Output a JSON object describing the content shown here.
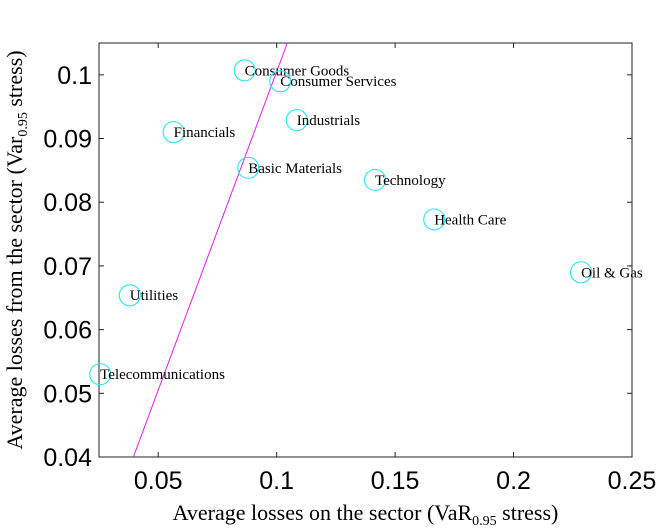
{
  "chart_data": {
    "type": "scatter",
    "title": "",
    "xlabel": {
      "prefix": "Average losses on the sector (",
      "var": "VaR",
      "subscript": "0.95",
      "suffix": " stress)"
    },
    "ylabel": {
      "prefix": "Average losses from the sector (",
      "var": "Var",
      "subscript": "0.95",
      "suffix": " stress)"
    },
    "xlim": [
      0.025,
      0.25
    ],
    "ylim": [
      0.04,
      0.105
    ],
    "xticks": [
      0.05,
      0.1,
      0.15,
      0.2,
      0.25
    ],
    "xtick_labels": [
      "0.05",
      "0.1",
      "0.15",
      "0.2",
      "0.25"
    ],
    "yticks": [
      0.04,
      0.05,
      0.06,
      0.07,
      0.08,
      0.09,
      0.1
    ],
    "ytick_labels": [
      "0.04",
      "0.05",
      "0.06",
      "0.07",
      "0.08",
      "0.09",
      "0.1"
    ],
    "grid": false,
    "marker_color": "#33e8f0",
    "line_color": "#e020e0",
    "points": [
      {
        "label": "Consumer Goods",
        "x": 0.0865,
        "y": 0.1007
      },
      {
        "label": "Consumer Services",
        "x": 0.1015,
        "y": 0.099
      },
      {
        "label": "Industrials",
        "x": 0.1085,
        "y": 0.0929
      },
      {
        "label": "Financials",
        "x": 0.0565,
        "y": 0.091
      },
      {
        "label": "Basic Materials",
        "x": 0.088,
        "y": 0.0854
      },
      {
        "label": "Technology",
        "x": 0.1415,
        "y": 0.0835
      },
      {
        "label": "Health Care",
        "x": 0.1665,
        "y": 0.0773
      },
      {
        "label": "Oil & Gas",
        "x": 0.2285,
        "y": 0.069
      },
      {
        "label": "Utilities",
        "x": 0.038,
        "y": 0.0654
      },
      {
        "label": "Telecommunications",
        "x": 0.0255,
        "y": 0.053
      }
    ],
    "reference_line": {
      "x1": 0.0395,
      "y1": 0.04,
      "x2": 0.1045,
      "y2": 0.105
    }
  }
}
